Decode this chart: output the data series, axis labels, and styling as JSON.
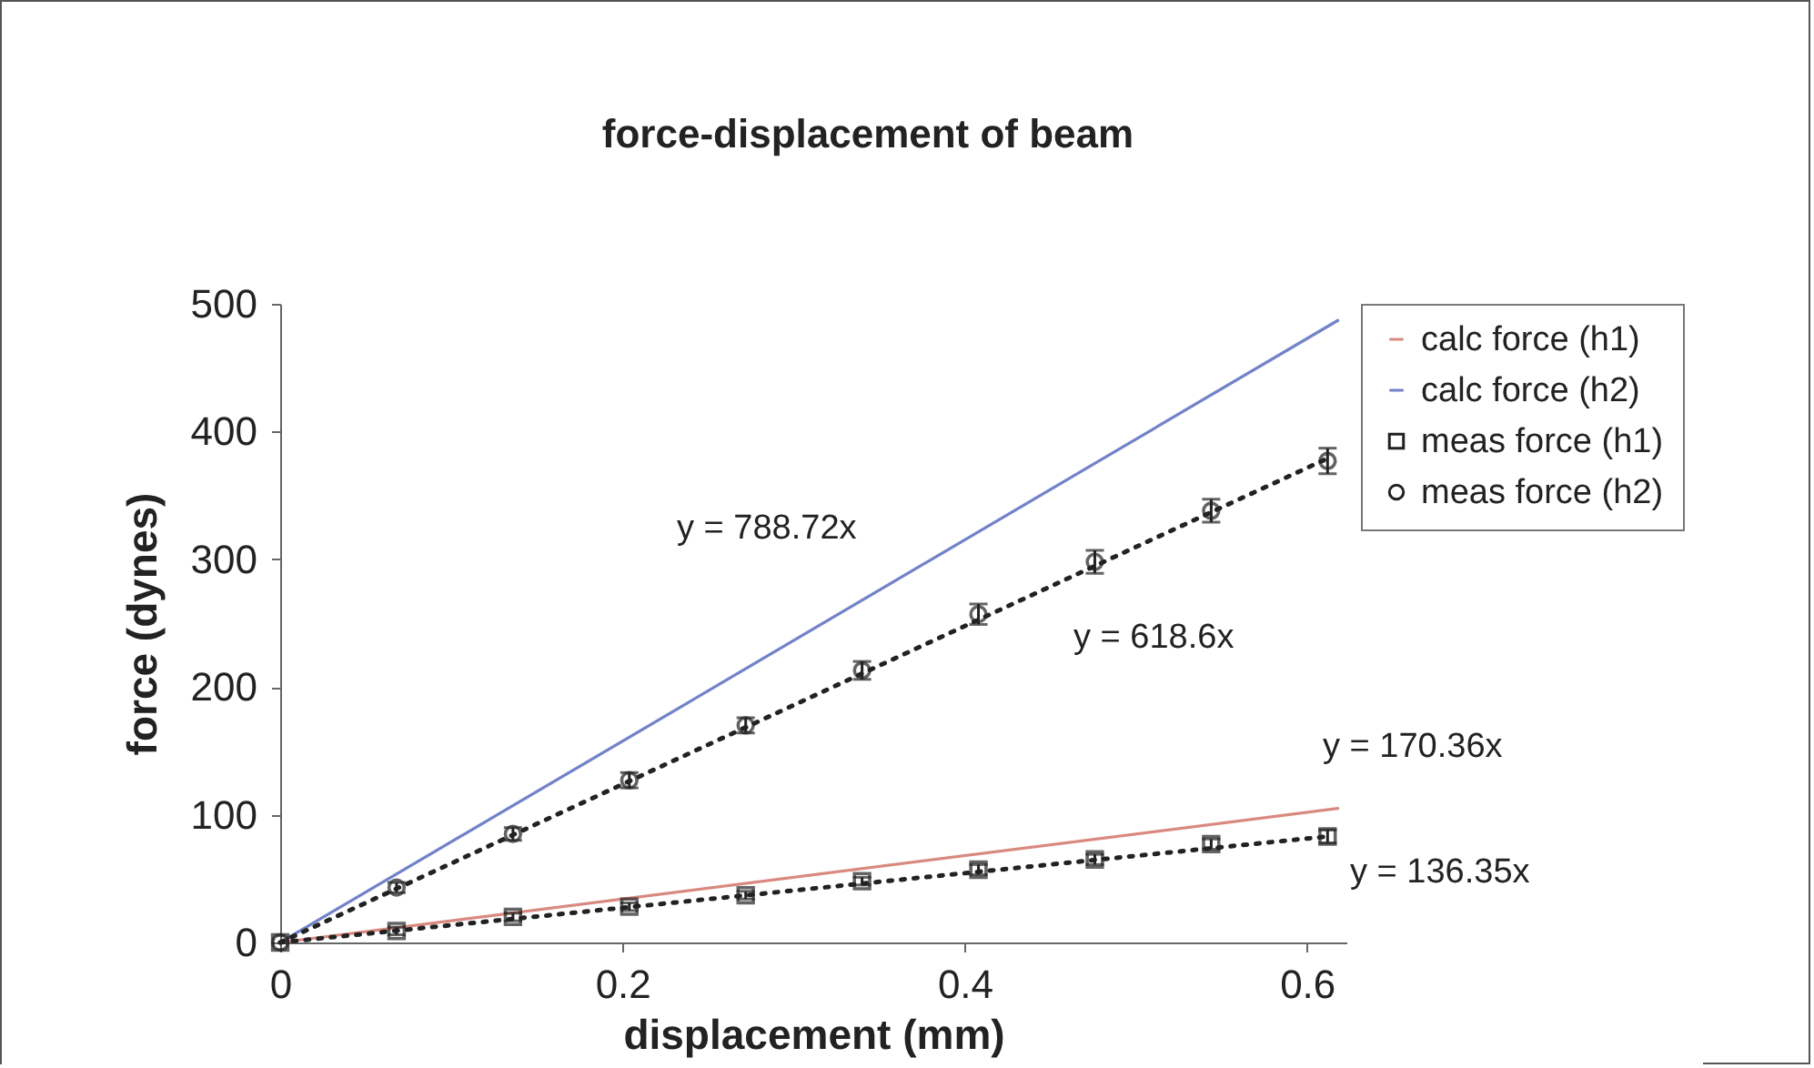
{
  "chart_data": {
    "type": "scatter",
    "title": "force-displacement of beam",
    "xlabel": "displacement (mm)",
    "ylabel": "force (dynes)",
    "xlim": [
      0,
      0.623
    ],
    "ylim": [
      0,
      500
    ],
    "xticks": [
      0,
      0.2,
      0.4,
      0.6
    ],
    "yticks": [
      0,
      100,
      200,
      300,
      400,
      500
    ],
    "grid": false,
    "legend": "top right",
    "series": [
      {
        "name": "calc force (h1)",
        "type": "line",
        "color": "#d98a80",
        "marker": "none",
        "line_style": "solid",
        "x": [
          0,
          0.618
        ],
        "values": [
          0,
          105
        ]
      },
      {
        "name": "calc force (h2)",
        "type": "line",
        "color": "#7283c9",
        "marker": "none",
        "line_style": "solid",
        "x": [
          0,
          0.618
        ],
        "values": [
          0,
          487
        ]
      },
      {
        "name": "meas force (h1)",
        "color": "#222222",
        "marker": "square",
        "x": [
          0,
          0.068,
          0.136,
          0.204,
          0.272,
          0.34,
          0.408,
          0.476,
          0.544,
          0.612
        ],
        "values": [
          0,
          9,
          20,
          28,
          37,
          48,
          57,
          65,
          77,
          83
        ],
        "errors": [
          null,
          3,
          3,
          3,
          3,
          3,
          4,
          4,
          4,
          5
        ]
      },
      {
        "name": "meas force (h2)",
        "color": "#222222",
        "marker": "circle",
        "x": [
          0,
          0.068,
          0.136,
          0.204,
          0.272,
          0.34,
          0.408,
          0.476,
          0.544,
          0.612
        ],
        "values": [
          0,
          43,
          85,
          127,
          170,
          213,
          257,
          298,
          338,
          377
        ],
        "errors": [
          null,
          4,
          5,
          6,
          6,
          7,
          8,
          9,
          9,
          10
        ]
      },
      {
        "type": "line",
        "color": "#222222",
        "marker": "none",
        "line_style": "dotted",
        "x": [
          0,
          0.612
        ],
        "values": [
          0,
          83
        ]
      },
      {
        "type": "line",
        "color": "#222222",
        "marker": "none",
        "line_style": "dotted",
        "x": [
          0,
          0.612
        ],
        "values": [
          0,
          379
        ]
      }
    ],
    "annotations": [
      "y = 788.72x",
      "y = 618.6x",
      "y = 170.36x",
      "y = 136.35x"
    ]
  }
}
